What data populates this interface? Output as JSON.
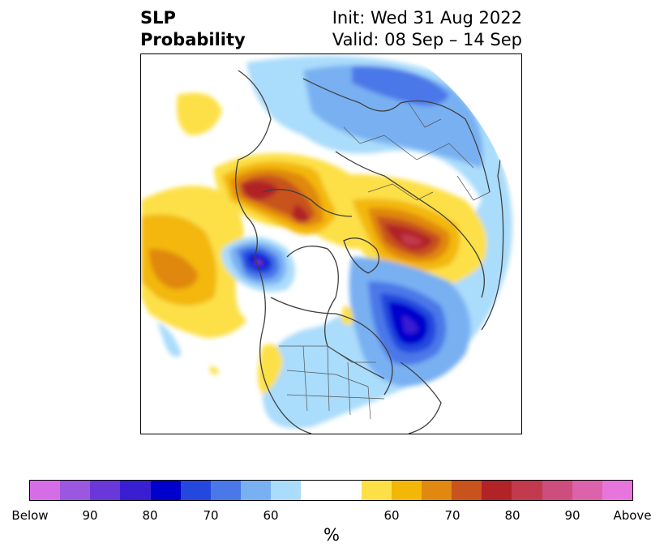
{
  "title": {
    "left_line1": "SLP",
    "left_line2": "Probability",
    "right_line1": "Init: Wed 31 Aug 2022",
    "right_line2": "Valid: 08 Sep – 14 Sep"
  },
  "colorbar": {
    "unit": "%",
    "tick_labels": [
      "Below",
      "90",
      "80",
      "70",
      "60",
      "60",
      "70",
      "80",
      "90",
      "Above"
    ],
    "below_colors": [
      "#d56ee6",
      "#9b57e0",
      "#6a38d8",
      "#3a1fd2",
      "#0000cc",
      "#2448de",
      "#4b78e8",
      "#78b0f2",
      "#aadcfb"
    ],
    "neutral_color": "#ffffff",
    "above_colors": [
      "#fde047",
      "#f3b707",
      "#e0880f",
      "#c8531c",
      "#b12327",
      "#c23a4e",
      "#cd4e7c",
      "#dc62ab",
      "#e676dc"
    ]
  }
}
